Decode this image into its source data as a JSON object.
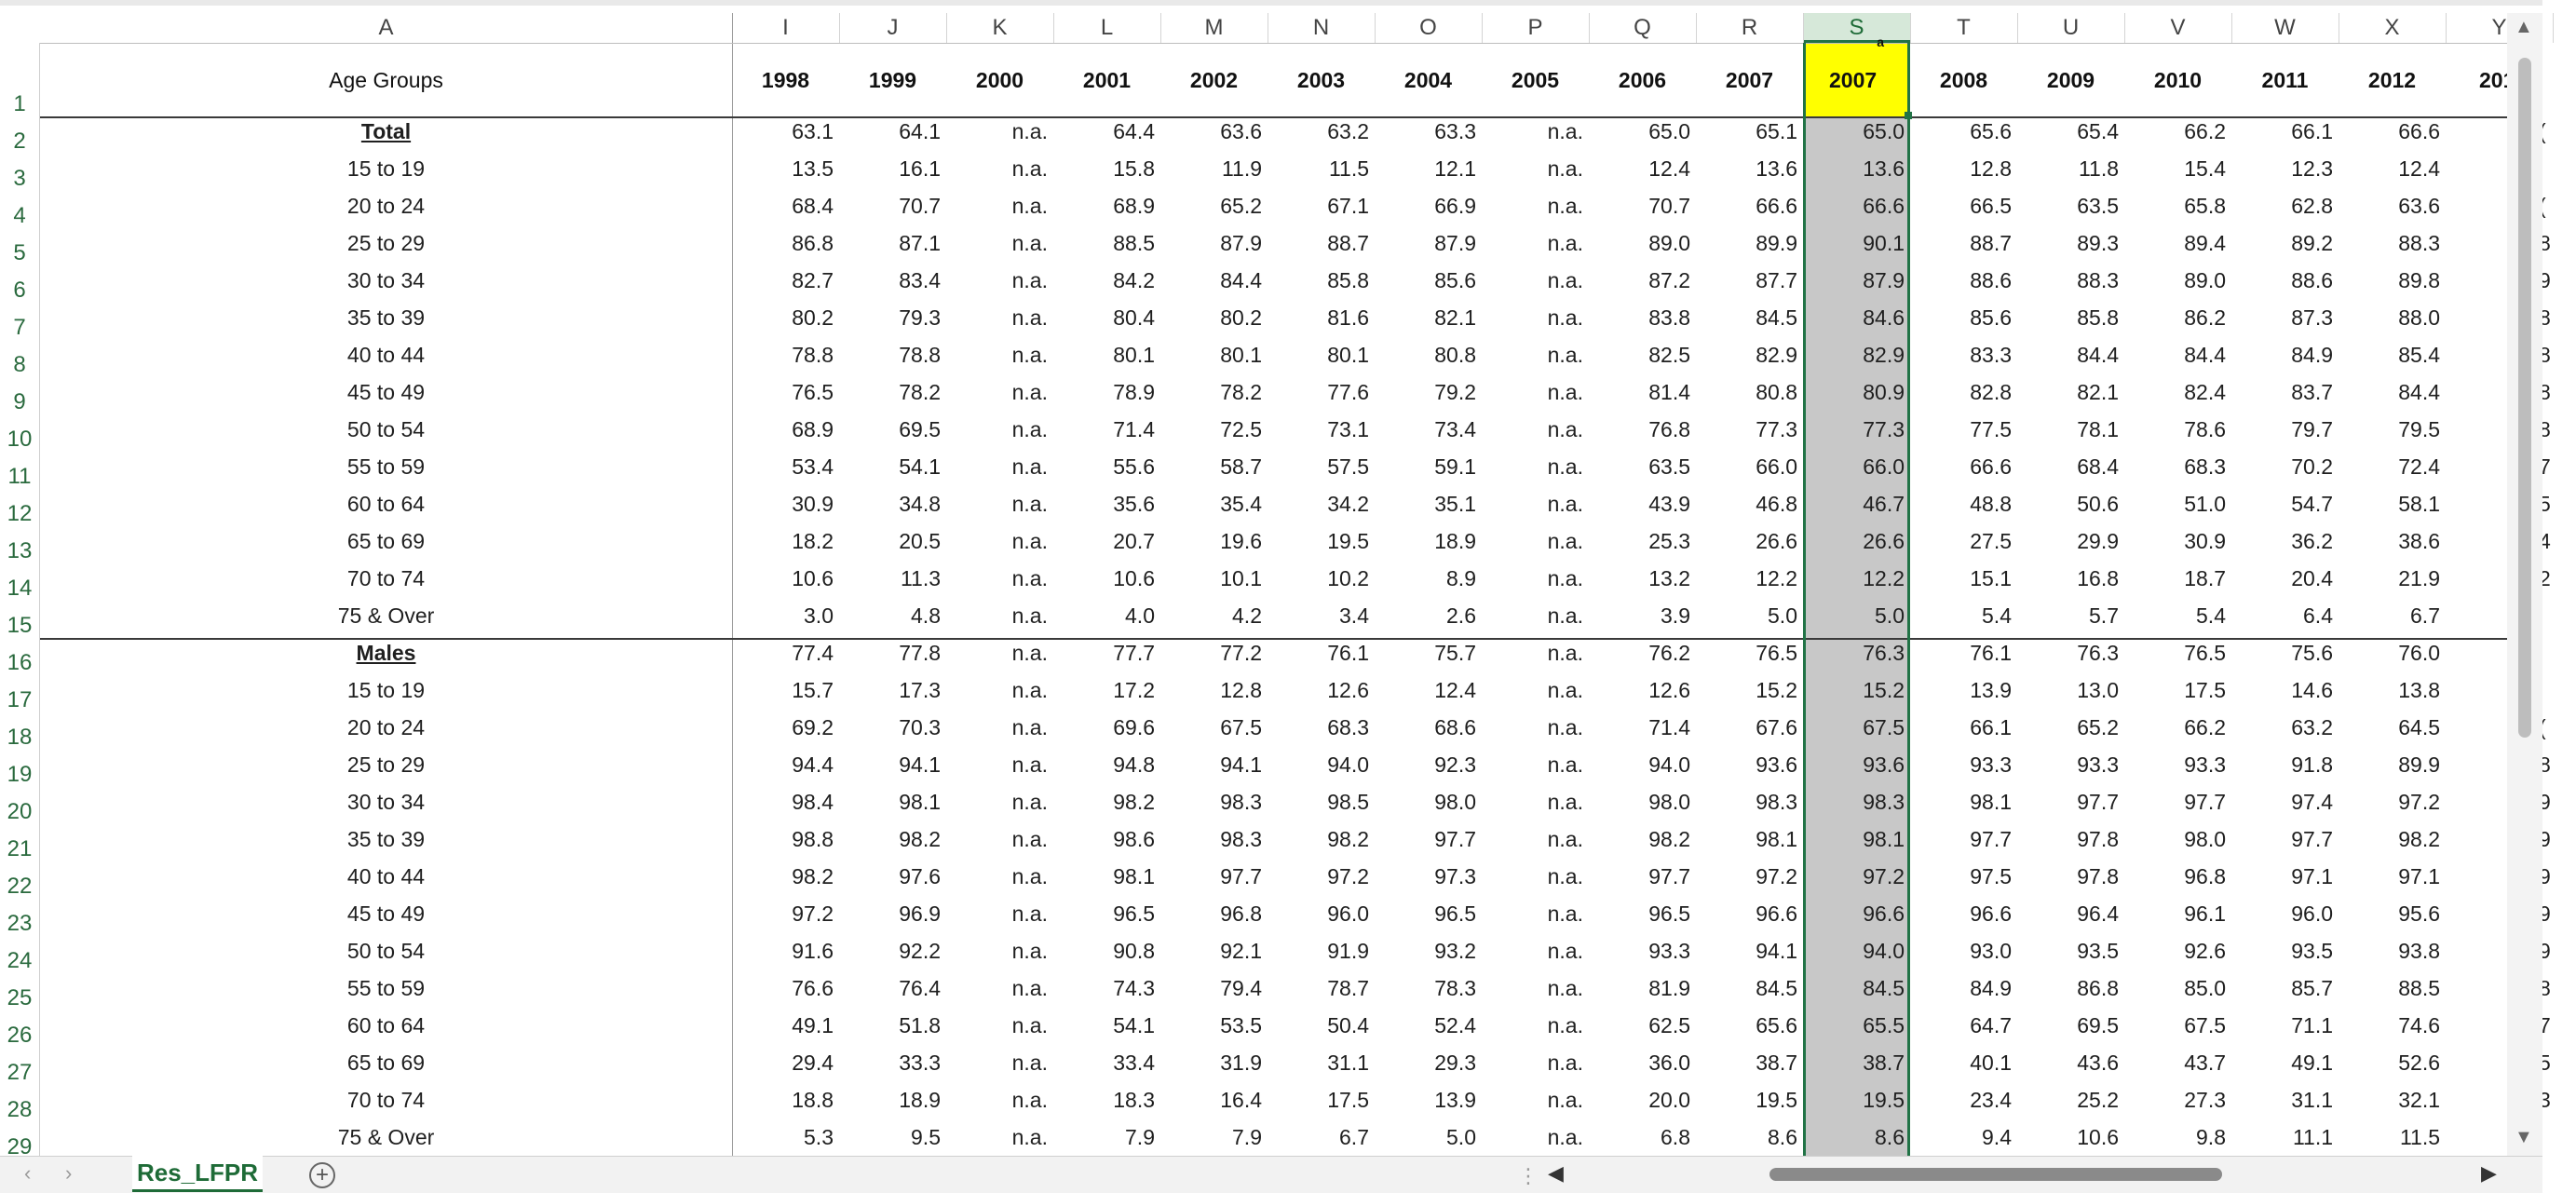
{
  "sheet": {
    "tab_label": "Res_LFPR",
    "add_sheet_icon": "plus-circle-icon"
  },
  "column_letters": [
    "A",
    "I",
    "J",
    "K",
    "L",
    "M",
    "N",
    "O",
    "P",
    "Q",
    "R",
    "S",
    "T",
    "U",
    "V",
    "W",
    "X",
    "Y"
  ],
  "selected_column": "S",
  "header_row": {
    "age_groups": "Age Groups",
    "years": [
      "1998",
      "1999",
      "2000",
      "2001",
      "2002",
      "2003",
      "2004",
      "2005",
      "2006",
      "2007",
      "2007",
      "2008",
      "2009",
      "2010",
      "2011",
      "2012",
      "201"
    ],
    "superscript_on_selected": "a"
  },
  "row_numbers": [
    "1",
    "2",
    "3",
    "4",
    "5",
    "6",
    "7",
    "8",
    "9",
    "10",
    "11",
    "12",
    "13",
    "14",
    "15",
    "16",
    "17",
    "18",
    "19",
    "20",
    "21",
    "22",
    "23",
    "24",
    "25",
    "26",
    "27",
    "28",
    "29"
  ],
  "rows": [
    {
      "label": "Total",
      "section": true,
      "values": [
        "63.1",
        "64.1",
        "n.a.",
        "64.4",
        "63.6",
        "63.2",
        "63.3",
        "n.a.",
        "65.0",
        "65.1",
        "65.0",
        "65.6",
        "65.4",
        "66.2",
        "66.1",
        "66.6",
        "("
      ]
    },
    {
      "label": "15 to 19",
      "values": [
        "13.5",
        "16.1",
        "n.a.",
        "15.8",
        "11.9",
        "11.5",
        "12.1",
        "n.a.",
        "12.4",
        "13.6",
        "13.6",
        "12.8",
        "11.8",
        "15.4",
        "12.3",
        "12.4",
        ""
      ]
    },
    {
      "label": "20 to 24",
      "values": [
        "68.4",
        "70.7",
        "n.a.",
        "68.9",
        "65.2",
        "67.1",
        "66.9",
        "n.a.",
        "70.7",
        "66.6",
        "66.6",
        "66.5",
        "63.5",
        "65.8",
        "62.8",
        "63.6",
        "("
      ]
    },
    {
      "label": "25 to 29",
      "values": [
        "86.8",
        "87.1",
        "n.a.",
        "88.5",
        "87.9",
        "88.7",
        "87.9",
        "n.a.",
        "89.0",
        "89.9",
        "90.1",
        "88.7",
        "89.3",
        "89.4",
        "89.2",
        "88.3",
        "8"
      ]
    },
    {
      "label": "30 to 34",
      "values": [
        "82.7",
        "83.4",
        "n.a.",
        "84.2",
        "84.4",
        "85.8",
        "85.6",
        "n.a.",
        "87.2",
        "87.7",
        "87.9",
        "88.6",
        "88.3",
        "89.0",
        "88.6",
        "89.8",
        "9"
      ]
    },
    {
      "label": "35 to 39",
      "values": [
        "80.2",
        "79.3",
        "n.a.",
        "80.4",
        "80.2",
        "81.6",
        "82.1",
        "n.a.",
        "83.8",
        "84.5",
        "84.6",
        "85.6",
        "85.8",
        "86.2",
        "87.3",
        "88.0",
        "8"
      ]
    },
    {
      "label": "40 to 44",
      "values": [
        "78.8",
        "78.8",
        "n.a.",
        "80.1",
        "80.1",
        "80.1",
        "80.8",
        "n.a.",
        "82.5",
        "82.9",
        "82.9",
        "83.3",
        "84.4",
        "84.4",
        "84.9",
        "85.4",
        "8"
      ]
    },
    {
      "label": "45 to 49",
      "values": [
        "76.5",
        "78.2",
        "n.a.",
        "78.9",
        "78.2",
        "77.6",
        "79.2",
        "n.a.",
        "81.4",
        "80.8",
        "80.9",
        "82.8",
        "82.1",
        "82.4",
        "83.7",
        "84.4",
        "8"
      ]
    },
    {
      "label": "50 to 54",
      "values": [
        "68.9",
        "69.5",
        "n.a.",
        "71.4",
        "72.5",
        "73.1",
        "73.4",
        "n.a.",
        "76.8",
        "77.3",
        "77.3",
        "77.5",
        "78.1",
        "78.6",
        "79.7",
        "79.5",
        "8"
      ]
    },
    {
      "label": "55 to 59",
      "values": [
        "53.4",
        "54.1",
        "n.a.",
        "55.6",
        "58.7",
        "57.5",
        "59.1",
        "n.a.",
        "63.5",
        "66.0",
        "66.0",
        "66.6",
        "68.4",
        "68.3",
        "70.2",
        "72.4",
        "7"
      ]
    },
    {
      "label": "60 to 64",
      "values": [
        "30.9",
        "34.8",
        "n.a.",
        "35.6",
        "35.4",
        "34.2",
        "35.1",
        "n.a.",
        "43.9",
        "46.8",
        "46.7",
        "48.8",
        "50.6",
        "51.0",
        "54.7",
        "58.1",
        "5"
      ]
    },
    {
      "label": "65 to 69",
      "values": [
        "18.2",
        "20.5",
        "n.a.",
        "20.7",
        "19.6",
        "19.5",
        "18.9",
        "n.a.",
        "25.3",
        "26.6",
        "26.6",
        "27.5",
        "29.9",
        "30.9",
        "36.2",
        "38.6",
        "4"
      ]
    },
    {
      "label": "70 to 74",
      "values": [
        "10.6",
        "11.3",
        "n.a.",
        "10.6",
        "10.1",
        "10.2",
        "8.9",
        "n.a.",
        "13.2",
        "12.2",
        "12.2",
        "15.1",
        "16.8",
        "18.7",
        "20.4",
        "21.9",
        "2"
      ]
    },
    {
      "label": "75 & Over",
      "values": [
        "3.0",
        "4.8",
        "n.a.",
        "4.0",
        "4.2",
        "3.4",
        "2.6",
        "n.a.",
        "3.9",
        "5.0",
        "5.0",
        "5.4",
        "5.7",
        "5.4",
        "6.4",
        "6.7",
        ""
      ]
    },
    {
      "label": "Males",
      "section": true,
      "values": [
        "77.4",
        "77.8",
        "n.a.",
        "77.7",
        "77.2",
        "76.1",
        "75.7",
        "n.a.",
        "76.2",
        "76.5",
        "76.3",
        "76.1",
        "76.3",
        "76.5",
        "75.6",
        "76.0",
        ""
      ]
    },
    {
      "label": "15 to 19",
      "values": [
        "15.7",
        "17.3",
        "n.a.",
        "17.2",
        "12.8",
        "12.6",
        "12.4",
        "n.a.",
        "12.6",
        "15.2",
        "15.2",
        "13.9",
        "13.0",
        "17.5",
        "14.6",
        "13.8",
        ""
      ]
    },
    {
      "label": "20 to 24",
      "values": [
        "69.2",
        "70.3",
        "n.a.",
        "69.6",
        "67.5",
        "68.3",
        "68.6",
        "n.a.",
        "71.4",
        "67.6",
        "67.5",
        "66.1",
        "65.2",
        "66.2",
        "63.2",
        "64.5",
        "("
      ]
    },
    {
      "label": "25 to 29",
      "values": [
        "94.4",
        "94.1",
        "n.a.",
        "94.8",
        "94.1",
        "94.0",
        "92.3",
        "n.a.",
        "94.0",
        "93.6",
        "93.6",
        "93.3",
        "93.3",
        "93.3",
        "91.8",
        "89.9",
        "8"
      ]
    },
    {
      "label": "30 to 34",
      "values": [
        "98.4",
        "98.1",
        "n.a.",
        "98.2",
        "98.3",
        "98.5",
        "98.0",
        "n.a.",
        "98.0",
        "98.3",
        "98.3",
        "98.1",
        "97.7",
        "97.7",
        "97.4",
        "97.2",
        "9"
      ]
    },
    {
      "label": "35 to 39",
      "values": [
        "98.8",
        "98.2",
        "n.a.",
        "98.6",
        "98.3",
        "98.2",
        "97.7",
        "n.a.",
        "98.2",
        "98.1",
        "98.1",
        "97.7",
        "97.8",
        "98.0",
        "97.7",
        "98.2",
        "9"
      ]
    },
    {
      "label": "40 to 44",
      "values": [
        "98.2",
        "97.6",
        "n.a.",
        "98.1",
        "97.7",
        "97.2",
        "97.3",
        "n.a.",
        "97.7",
        "97.2",
        "97.2",
        "97.5",
        "97.8",
        "96.8",
        "97.1",
        "97.1",
        "9"
      ]
    },
    {
      "label": "45 to 49",
      "values": [
        "97.2",
        "96.9",
        "n.a.",
        "96.5",
        "96.8",
        "96.0",
        "96.5",
        "n.a.",
        "96.5",
        "96.6",
        "96.6",
        "96.6",
        "96.4",
        "96.1",
        "96.0",
        "95.6",
        "9"
      ]
    },
    {
      "label": "50 to 54",
      "values": [
        "91.6",
        "92.2",
        "n.a.",
        "90.8",
        "92.1",
        "91.9",
        "93.2",
        "n.a.",
        "93.3",
        "94.1",
        "94.0",
        "93.0",
        "93.5",
        "92.6",
        "93.5",
        "93.8",
        "9"
      ]
    },
    {
      "label": "55 to 59",
      "values": [
        "76.6",
        "76.4",
        "n.a.",
        "74.3",
        "79.4",
        "78.7",
        "78.3",
        "n.a.",
        "81.9",
        "84.5",
        "84.5",
        "84.9",
        "86.8",
        "85.0",
        "85.7",
        "88.5",
        "8"
      ]
    },
    {
      "label": "60 to 64",
      "values": [
        "49.1",
        "51.8",
        "n.a.",
        "54.1",
        "53.5",
        "50.4",
        "52.4",
        "n.a.",
        "62.5",
        "65.6",
        "65.5",
        "64.7",
        "69.5",
        "67.5",
        "71.1",
        "74.6",
        "7"
      ]
    },
    {
      "label": "65 to 69",
      "values": [
        "29.4",
        "33.3",
        "n.a.",
        "33.4",
        "31.9",
        "31.1",
        "29.3",
        "n.a.",
        "36.0",
        "38.7",
        "38.7",
        "40.1",
        "43.6",
        "43.7",
        "49.1",
        "52.6",
        "5"
      ]
    },
    {
      "label": "70 to 74",
      "values": [
        "18.8",
        "18.9",
        "n.a.",
        "18.3",
        "16.4",
        "17.5",
        "13.9",
        "n.a.",
        "20.0",
        "19.5",
        "19.5",
        "23.4",
        "25.2",
        "27.3",
        "31.1",
        "32.1",
        "3"
      ]
    },
    {
      "label": "75 & Over",
      "values": [
        "5.3",
        "9.5",
        "n.a.",
        "7.9",
        "7.9",
        "6.7",
        "5.0",
        "n.a.",
        "6.8",
        "8.6",
        "8.6",
        "9.4",
        "10.6",
        "9.8",
        "11.1",
        "11.5",
        ""
      ]
    }
  ],
  "icons": {
    "sheet_prev": "chevron-left-icon",
    "sheet_next": "chevron-right-icon",
    "scroll_left": "triangle-left-icon",
    "scroll_right": "triangle-right-icon",
    "scroll_up": "triangle-up-icon",
    "scroll_down": "triangle-down-icon",
    "more": "vertical-dots-icon"
  },
  "colors": {
    "selected_header_fill": "#ffff00",
    "selected_column_fill": "#c8c8c8",
    "accent": "#217346"
  }
}
